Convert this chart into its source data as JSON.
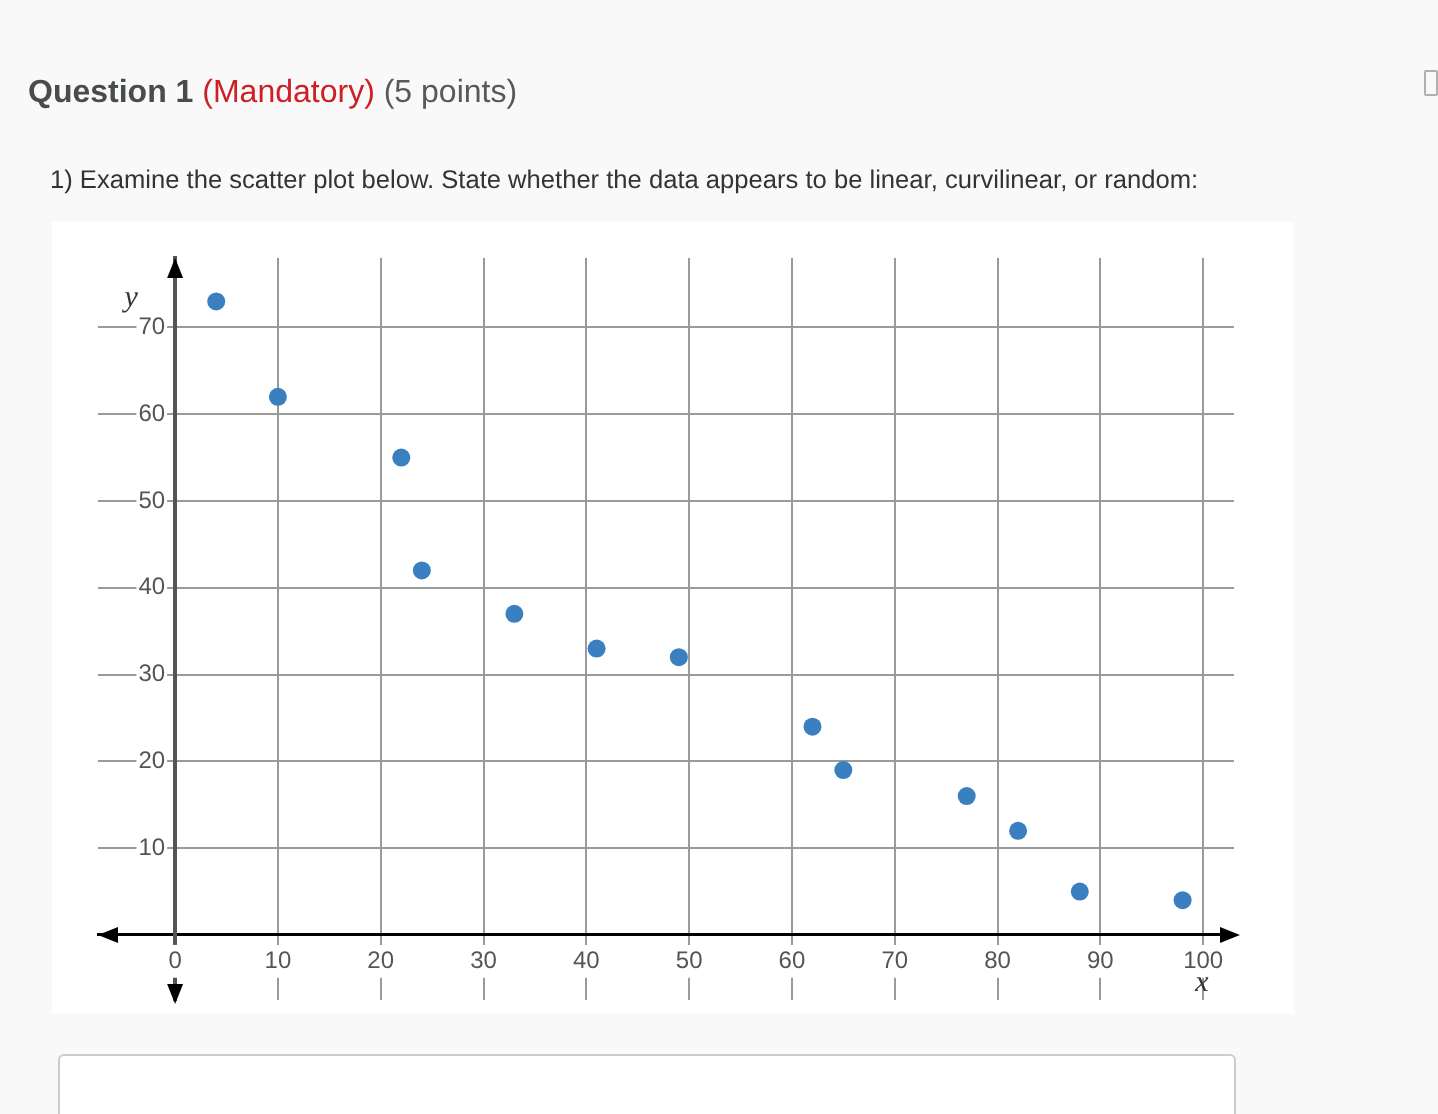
{
  "chart_data": {
    "type": "scatter",
    "title": "Question 1",
    "annotations": [
      "(Mandatory)",
      "(5 points)"
    ],
    "subtitle": "1) Examine the scatter plot below. State whether the data appears to be linear, curvilinear, or random:",
    "xlabel": "x",
    "ylabel": "y",
    "x": [
      4,
      10,
      22,
      24,
      33,
      41,
      49,
      62,
      65,
      77,
      82,
      88,
      98
    ],
    "values": [
      73,
      62,
      55,
      42,
      37,
      33,
      32,
      24,
      19,
      16,
      12,
      5,
      4
    ],
    "color": "#3a7fc0",
    "xlim": [
      -7.5,
      103
    ],
    "ylim": [
      -7.5,
      78
    ],
    "xticks": [
      0,
      10,
      20,
      30,
      40,
      50,
      60,
      70,
      80,
      90,
      100
    ],
    "yticks": [
      10,
      20,
      30,
      40,
      50,
      60,
      70
    ],
    "grid": true,
    "marker": "circle"
  }
}
